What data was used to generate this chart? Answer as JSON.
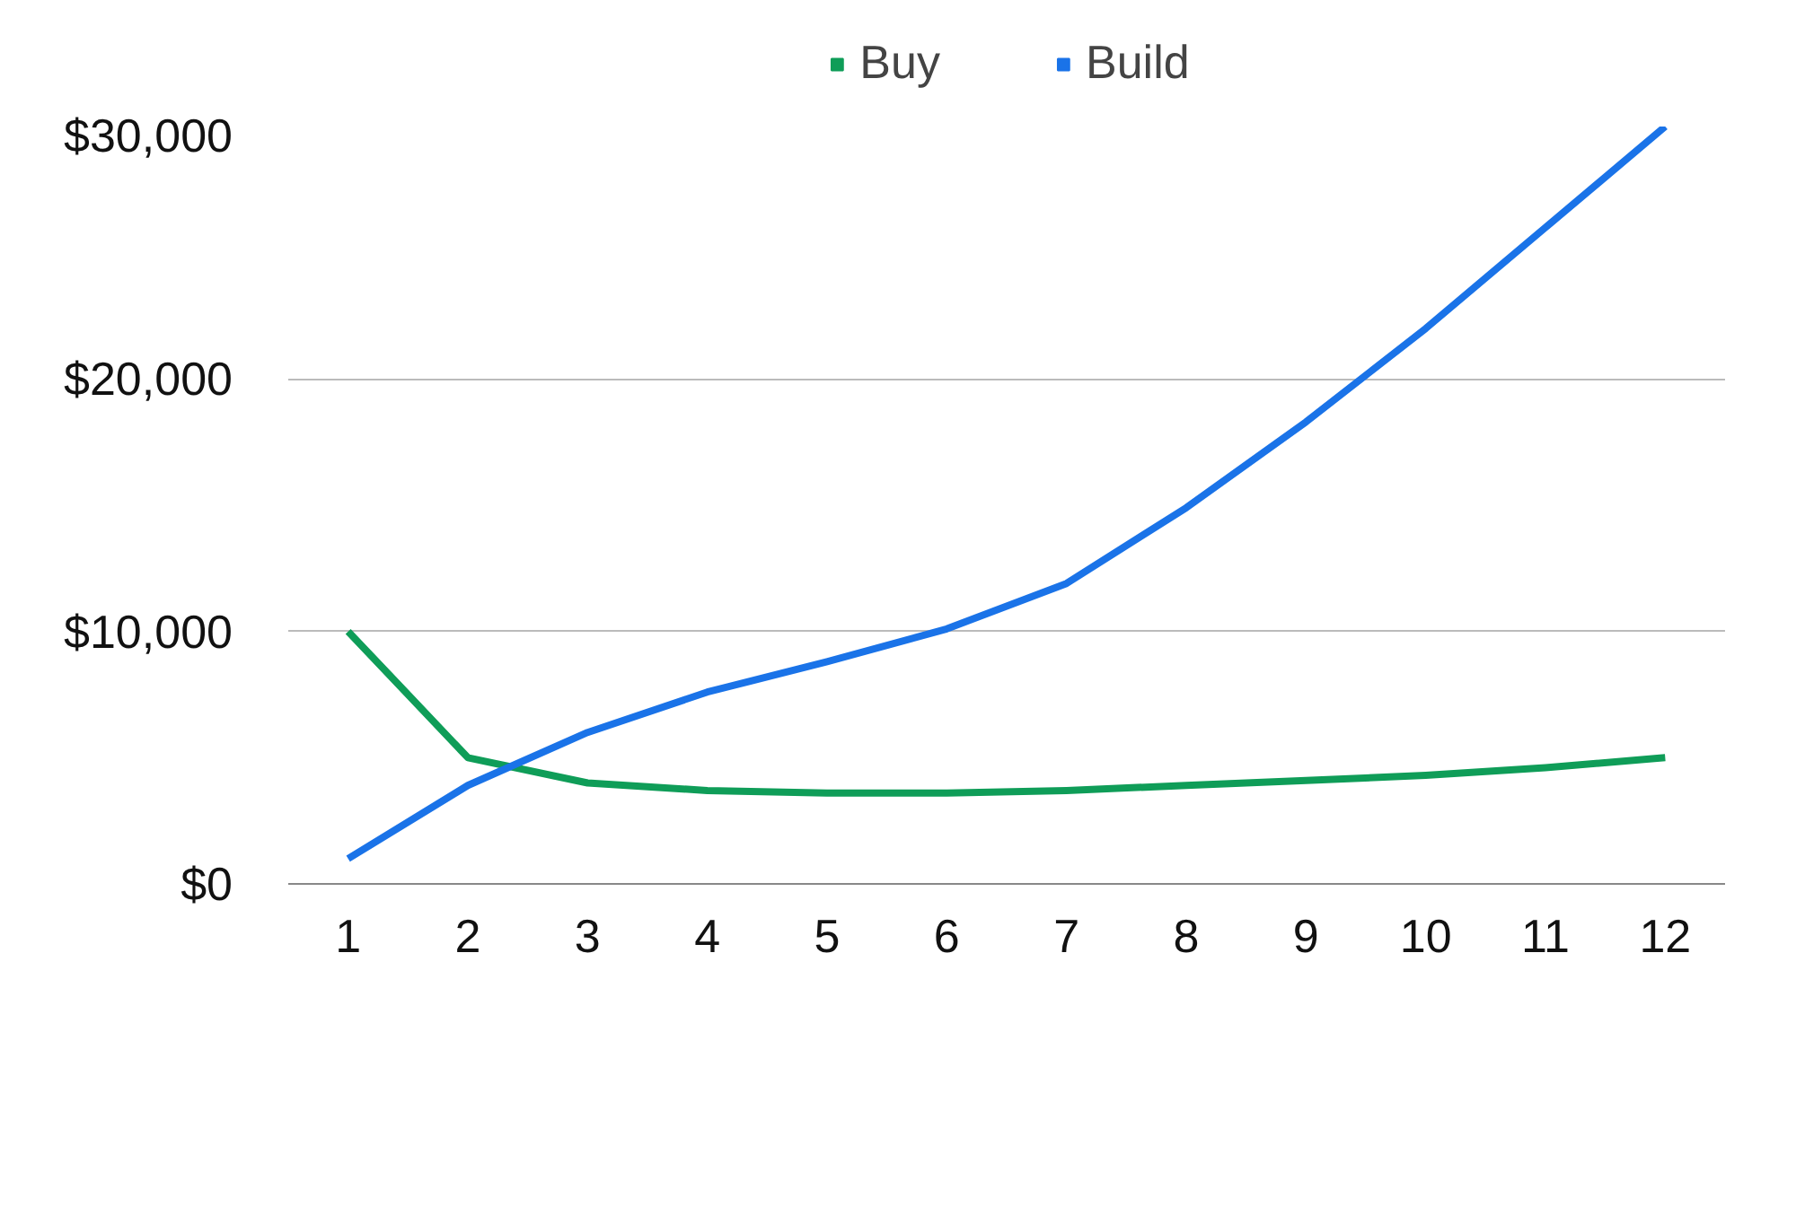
{
  "chart_data": {
    "type": "line",
    "x": [
      1,
      2,
      3,
      4,
      5,
      6,
      7,
      8,
      9,
      10,
      11,
      12
    ],
    "series": [
      {
        "name": "Buy",
        "color": "#0f9d58",
        "values": [
          10000,
          5000,
          4000,
          3700,
          3600,
          3600,
          3700,
          3900,
          4100,
          4300,
          4600,
          5000
        ]
      },
      {
        "name": "Build",
        "color": "#1a73e8",
        "values": [
          1000,
          3900,
          6000,
          7600,
          8800,
          10100,
          11900,
          14900,
          18300,
          22000,
          26000,
          30000
        ]
      }
    ],
    "xlim": [
      0.5,
      12.5
    ],
    "xticks": [
      1,
      2,
      3,
      4,
      5,
      6,
      7,
      8,
      9,
      10,
      11,
      12
    ],
    "ylim": [
      0,
      30000
    ],
    "yticks": [
      {
        "value": 0,
        "label": "$0"
      },
      {
        "value": 10000,
        "label": "$10,000"
      },
      {
        "value": 20000,
        "label": "$20,000"
      },
      {
        "value": 30000,
        "label": "$30,000"
      }
    ],
    "grid": "y",
    "legend": "top",
    "marker": "none",
    "line_style": "solid"
  }
}
